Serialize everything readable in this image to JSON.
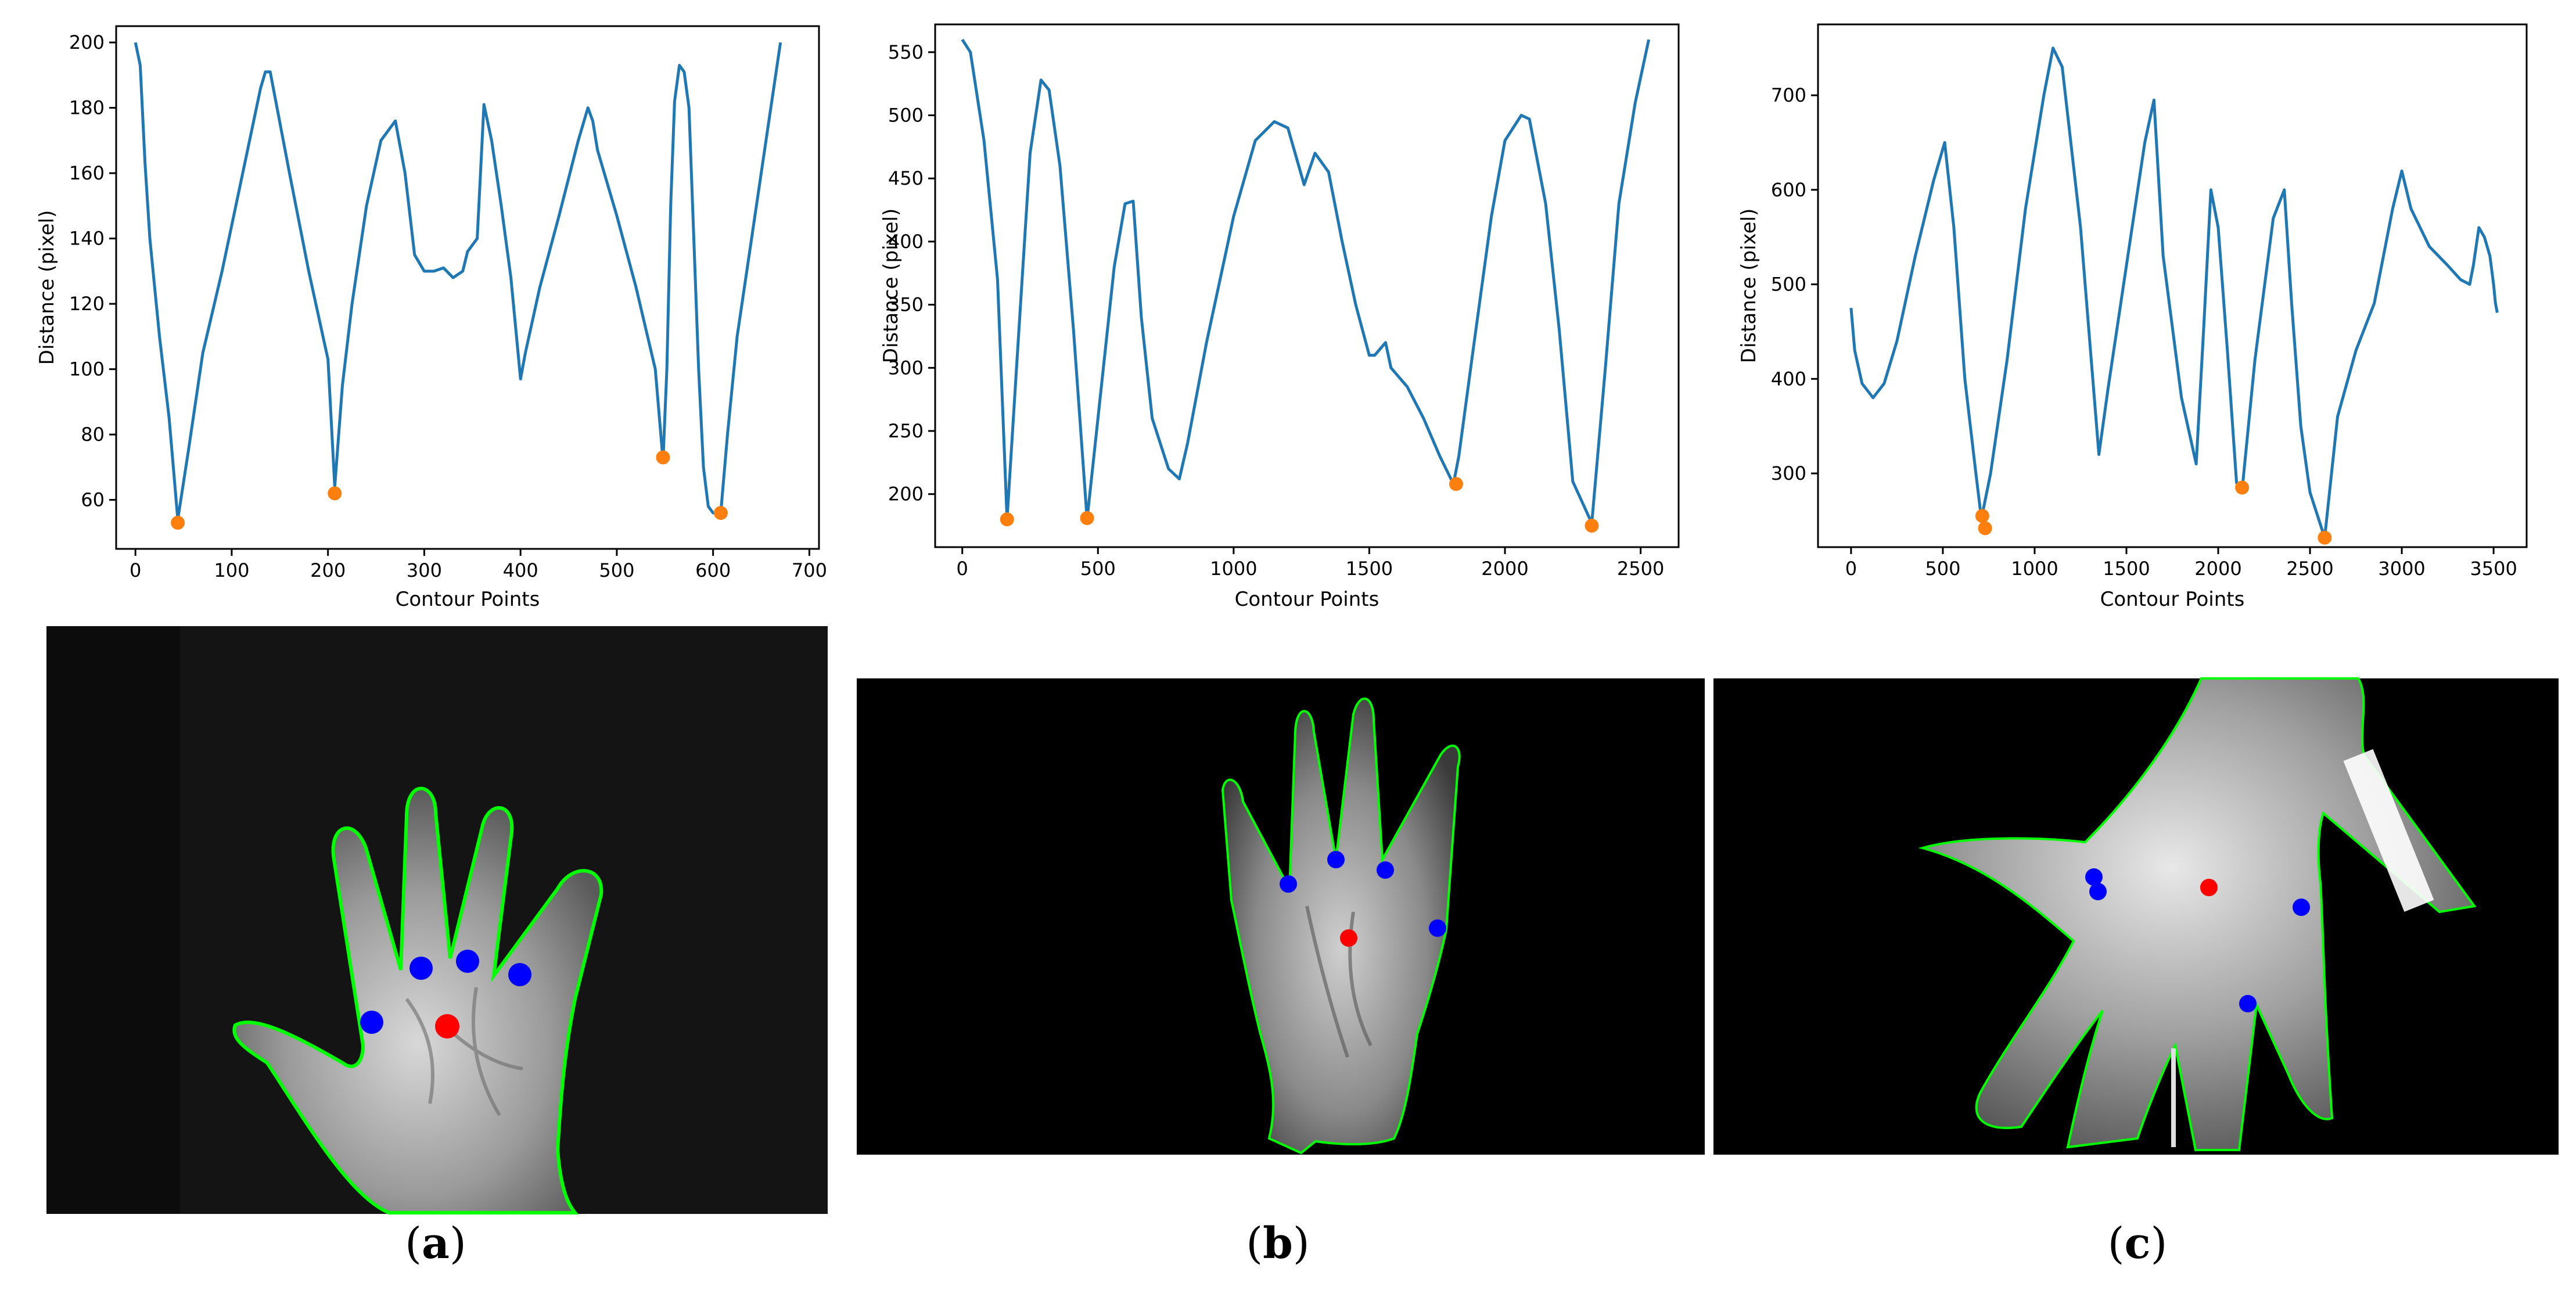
{
  "colors": {
    "line": "#1f77b4",
    "minima": "#ff7f0e",
    "contour": "#00ff00",
    "finger_valley_points": "#0000ff",
    "palm_center": "#ff0000"
  },
  "panel_labels": [
    "a",
    "b",
    "c"
  ],
  "chart_data": [
    {
      "type": "line",
      "xlabel": "Contour Points",
      "ylabel": "Distance (pixel)",
      "xlim": [
        -20,
        710
      ],
      "ylim": [
        45,
        205
      ],
      "xticks": [
        0,
        100,
        200,
        300,
        400,
        500,
        600,
        700
      ],
      "yticks": [
        60,
        80,
        100,
        120,
        140,
        160,
        180,
        200
      ],
      "series": [
        {
          "x": [
            0,
            5,
            10,
            15,
            25,
            35,
            44,
            55,
            70,
            90,
            110,
            130,
            135,
            140,
            160,
            180,
            200,
            207,
            215,
            225,
            240,
            255,
            270,
            280,
            290,
            300,
            310,
            320,
            330,
            340,
            345,
            355,
            362,
            370,
            380,
            390,
            400,
            405,
            420,
            440,
            460,
            470,
            475,
            480,
            500,
            520,
            540,
            548,
            552,
            556,
            560,
            565,
            570,
            575,
            580,
            585,
            590,
            595,
            600,
            608,
            615,
            625,
            640,
            655,
            665,
            670
          ],
          "y": [
            200,
            193,
            163,
            140,
            110,
            85,
            54,
            75,
            105,
            130,
            158,
            186,
            191,
            191,
            160,
            130,
            103,
            64,
            95,
            120,
            150,
            170,
            176,
            160,
            135,
            130,
            130,
            131,
            128,
            130,
            136,
            140,
            181,
            170,
            150,
            128,
            97,
            105,
            125,
            147,
            170,
            180,
            176,
            167,
            147,
            125,
            100,
            72,
            100,
            150,
            182,
            193,
            191,
            180,
            140,
            100,
            70,
            58,
            56,
            56,
            80,
            110,
            140,
            170,
            190,
            200
          ]
        }
      ],
      "minima": {
        "x": [
          44,
          207,
          548,
          608
        ],
        "y": [
          53,
          62,
          73,
          56
        ]
      }
    },
    {
      "type": "line",
      "xlabel": "Contour Points",
      "ylabel": "Distance (pixel)",
      "xlim": [
        -100,
        2640
      ],
      "ylim": [
        158,
        572
      ],
      "xticks": [
        0,
        500,
        1000,
        1500,
        2000,
        2500
      ],
      "yticks": [
        200,
        250,
        300,
        350,
        400,
        450,
        500,
        550
      ],
      "series": [
        {
          "x": [
            0,
            30,
            80,
            130,
            165,
            200,
            250,
            290,
            320,
            360,
            410,
            460,
            500,
            560,
            600,
            630,
            660,
            700,
            760,
            800,
            830,
            900,
            1000,
            1080,
            1150,
            1200,
            1260,
            1300,
            1350,
            1400,
            1450,
            1500,
            1520,
            1560,
            1580,
            1640,
            1700,
            1760,
            1810,
            1830,
            1880,
            1950,
            2000,
            2060,
            2090,
            2150,
            2200,
            2250,
            2320,
            2370,
            2420,
            2480,
            2530
          ],
          "y": [
            560,
            550,
            480,
            370,
            180,
            300,
            470,
            528,
            520,
            460,
            330,
            180,
            260,
            380,
            430,
            432,
            340,
            260,
            220,
            212,
            240,
            320,
            420,
            480,
            495,
            490,
            445,
            470,
            455,
            400,
            350,
            310,
            310,
            320,
            300,
            285,
            260,
            230,
            208,
            230,
            310,
            420,
            480,
            500,
            497,
            430,
            330,
            210,
            177,
            300,
            430,
            510,
            560
          ]
        }
      ],
      "minima": {
        "x": [
          165,
          460,
          1820,
          2320
        ],
        "y": [
          180,
          181,
          208,
          175
        ]
      }
    },
    {
      "type": "line",
      "xlabel": "Contour Points",
      "ylabel": "Distance (pixel)",
      "xlim": [
        -180,
        3680
      ],
      "ylim": [
        222,
        775
      ],
      "xticks": [
        0,
        500,
        1000,
        1500,
        2000,
        2500,
        3000,
        3500
      ],
      "yticks": [
        300,
        400,
        500,
        600,
        700
      ],
      "series": [
        {
          "x": [
            0,
            20,
            60,
            120,
            180,
            250,
            350,
            450,
            510,
            560,
            620,
            680,
            710,
            760,
            850,
            950,
            1050,
            1100,
            1150,
            1250,
            1350,
            1400,
            1500,
            1600,
            1650,
            1700,
            1800,
            1880,
            1920,
            1960,
            2000,
            2050,
            2100,
            2130,
            2200,
            2300,
            2360,
            2400,
            2450,
            2500,
            2580,
            2650,
            2750,
            2850,
            2950,
            3000,
            3050,
            3150,
            3250,
            3320,
            3370,
            3390,
            3420,
            3450,
            3480,
            3500,
            3510,
            3520
          ],
          "y": [
            475,
            430,
            395,
            380,
            395,
            440,
            530,
            610,
            650,
            560,
            400,
            300,
            252,
            300,
            420,
            580,
            700,
            750,
            730,
            560,
            320,
            390,
            520,
            650,
            695,
            530,
            380,
            310,
            450,
            600,
            560,
            430,
            290,
            282,
            420,
            570,
            600,
            480,
            350,
            280,
            232,
            360,
            430,
            480,
            580,
            620,
            580,
            540,
            520,
            505,
            500,
            520,
            560,
            550,
            530,
            500,
            480,
            470
          ]
        }
      ],
      "minima": {
        "x": [
          715,
          730,
          2130,
          2580
        ],
        "y": [
          255,
          242,
          285,
          232
        ]
      }
    }
  ]
}
